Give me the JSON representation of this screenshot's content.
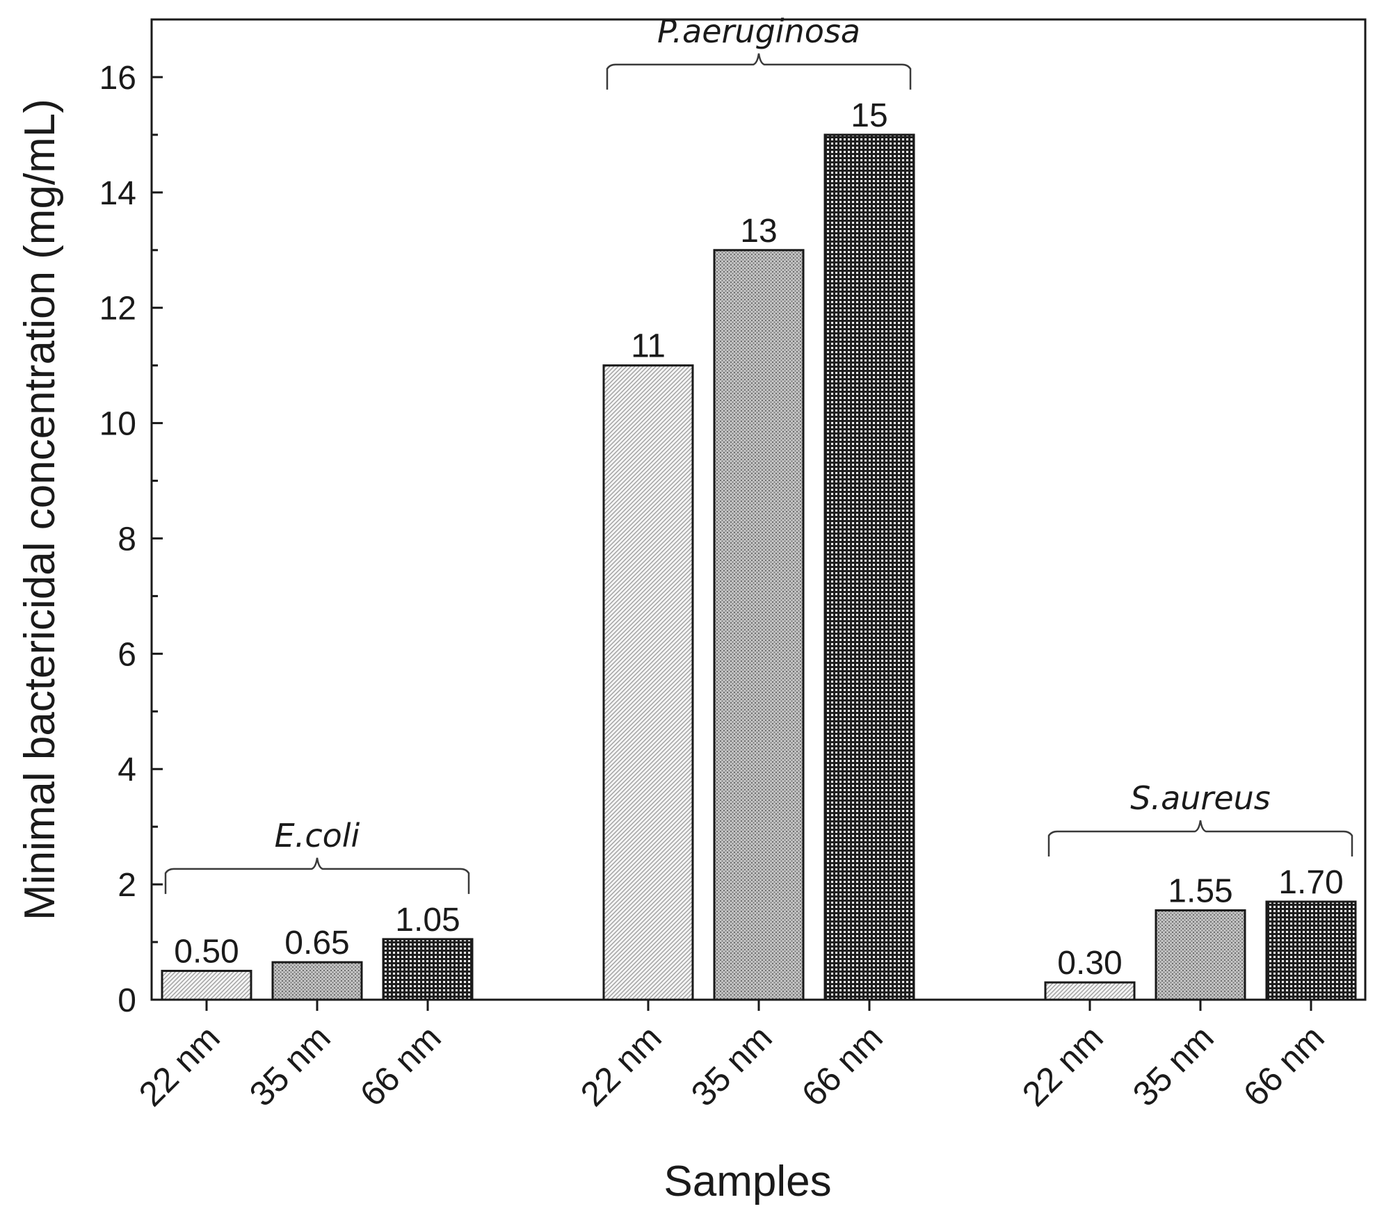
{
  "chart_data": {
    "type": "bar",
    "title": "",
    "xlabel": "Samples",
    "ylabel": "Minimal bactericidal concentration (mg/mL)",
    "ylim": [
      0,
      17
    ],
    "yticks": [
      0,
      2,
      4,
      6,
      8,
      10,
      12,
      14,
      16
    ],
    "grid": false,
    "groups": [
      {
        "name": "E.coli",
        "categories": [
          "22 nm",
          "35 nm",
          "66 nm"
        ],
        "values": [
          0.5,
          0.65,
          1.05
        ],
        "labels": [
          "0.50",
          "0.65",
          "1.05"
        ]
      },
      {
        "name": "P.aeruginosa",
        "categories": [
          "22 nm",
          "35 nm",
          "66 nm"
        ],
        "values": [
          11,
          13,
          15
        ],
        "labels": [
          "11",
          "13",
          "15"
        ]
      },
      {
        "name": "S.aureus",
        "categories": [
          "22 nm",
          "35 nm",
          "66 nm"
        ],
        "values": [
          0.3,
          1.55,
          1.7
        ],
        "labels": [
          "0.30",
          "1.55",
          "1.70"
        ]
      }
    ],
    "series_colors": [
      "#e2e2e2",
      "#a9a9a9",
      "#6b6b6b"
    ]
  }
}
